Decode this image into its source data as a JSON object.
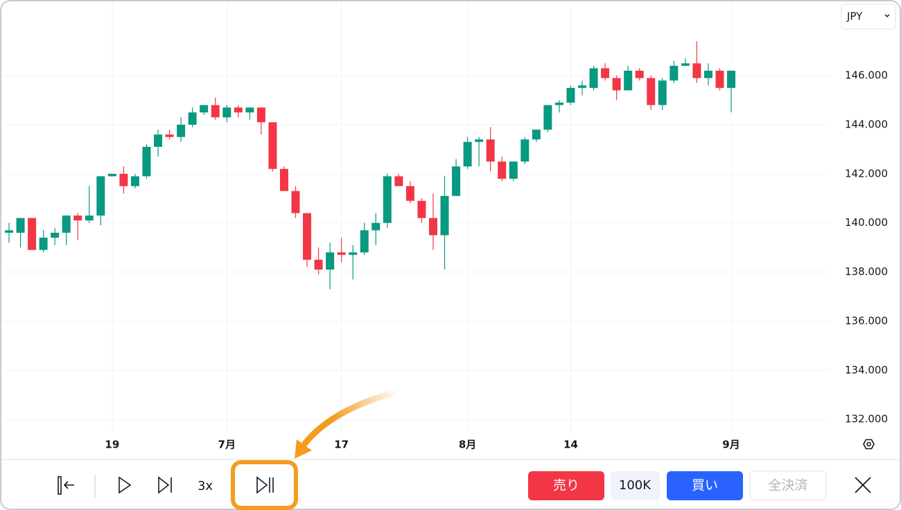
{
  "currency_select": "JPY",
  "toolbar": {
    "speed": "3x",
    "sell": "売り",
    "amount": "100K",
    "buy": "買い",
    "close_all": "全決済"
  },
  "chart_data": {
    "type": "candlestick",
    "up_color": "#089981",
    "down_color": "#f23645",
    "grid": true,
    "ylim": [
      131.44,
      149.08
    ],
    "yticks": [
      {
        "value": 132,
        "label": "132.000"
      },
      {
        "value": 134,
        "label": "134.000"
      },
      {
        "value": 136,
        "label": "136.000"
      },
      {
        "value": 138,
        "label": "138.000"
      },
      {
        "value": 140,
        "label": "140.000"
      },
      {
        "value": 142,
        "label": "142.000"
      },
      {
        "value": 144,
        "label": "144.000"
      },
      {
        "value": 146,
        "label": "146.000"
      }
    ],
    "categories": [
      null,
      null,
      null,
      null,
      null,
      null,
      null,
      null,
      null,
      "19",
      null,
      null,
      null,
      null,
      null,
      null,
      null,
      null,
      null,
      "7月",
      null,
      null,
      null,
      null,
      null,
      null,
      null,
      null,
      null,
      "17",
      null,
      null,
      null,
      null,
      null,
      null,
      null,
      null,
      null,
      null,
      "8月",
      null,
      null,
      null,
      null,
      null,
      null,
      null,
      null,
      "14",
      null,
      null,
      null,
      null,
      null,
      null,
      null,
      null,
      null,
      null,
      null,
      null,
      null,
      "9月"
    ],
    "open": [
      139.6,
      139.6,
      140.2,
      138.9,
      139.4,
      139.6,
      140.3,
      140.1,
      140.3,
      141.9,
      142.0,
      141.5,
      141.9,
      143.1,
      143.6,
      143.5,
      144.0,
      144.5,
      144.8,
      144.3,
      144.7,
      144.5,
      144.7,
      144.1,
      142.2,
      141.3,
      140.4,
      138.5,
      138.1,
      138.8,
      138.7,
      138.8,
      139.7,
      140.0,
      141.9,
      141.5,
      140.9,
      140.2,
      139.5,
      141.1,
      142.3,
      143.3,
      143.4,
      142.5,
      141.8,
      142.5,
      143.4,
      143.8,
      144.8,
      144.9,
      145.5,
      145.5,
      146.3,
      145.9,
      145.4,
      146.2,
      145.9,
      144.8,
      145.8,
      146.4,
      146.5,
      145.9,
      146.2,
      145.5
    ],
    "high": [
      140.0,
      140.2,
      140.2,
      139.7,
      139.8,
      140.3,
      140.4,
      141.5,
      141.9,
      142.0,
      142.3,
      142.0,
      143.2,
      143.8,
      143.8,
      144.3,
      144.7,
      144.8,
      145.1,
      144.8,
      144.8,
      144.7,
      144.7,
      144.1,
      142.3,
      141.5,
      140.4,
      139.0,
      139.2,
      139.4,
      139.1,
      140.0,
      140.4,
      142.0,
      142.0,
      141.7,
      141.0,
      141.2,
      141.9,
      142.6,
      143.5,
      143.5,
      143.9,
      142.7,
      142.5,
      143.5,
      143.8,
      144.8,
      145.0,
      145.6,
      145.8,
      146.4,
      146.5,
      146.0,
      146.4,
      146.3,
      146.0,
      145.9,
      146.6,
      146.7,
      147.4,
      146.5,
      146.3,
      146.2
    ],
    "low": [
      139.2,
      139.0,
      138.9,
      138.8,
      139.1,
      139.1,
      139.3,
      140.0,
      139.9,
      141.9,
      141.2,
      141.4,
      141.8,
      142.7,
      143.4,
      143.3,
      143.9,
      144.4,
      144.2,
      144.1,
      144.3,
      144.2,
      143.6,
      142.1,
      141.3,
      140.2,
      138.2,
      137.9,
      137.3,
      138.4,
      137.7,
      138.7,
      139.1,
      139.8,
      141.5,
      140.8,
      140.0,
      138.9,
      138.1,
      141.1,
      142.2,
      142.3,
      142.1,
      141.7,
      141.7,
      142.4,
      143.3,
      143.7,
      144.5,
      144.8,
      145.2,
      145.4,
      145.8,
      145.0,
      145.4,
      145.8,
      144.6,
      144.6,
      145.7,
      146.4,
      145.7,
      145.6,
      145.4,
      144.5
    ],
    "close": [
      139.7,
      140.2,
      138.9,
      139.4,
      139.6,
      140.3,
      140.1,
      140.3,
      141.9,
      142.0,
      141.5,
      141.9,
      143.1,
      143.6,
      143.5,
      144.0,
      144.5,
      144.8,
      144.3,
      144.7,
      144.5,
      144.7,
      144.1,
      142.2,
      141.3,
      140.4,
      138.5,
      138.1,
      138.8,
      138.7,
      138.8,
      139.7,
      140.0,
      141.9,
      141.5,
      140.9,
      140.2,
      139.5,
      141.1,
      142.3,
      143.3,
      143.4,
      142.5,
      141.8,
      142.5,
      143.4,
      143.8,
      144.8,
      144.9,
      145.5,
      145.6,
      146.3,
      145.9,
      145.4,
      146.2,
      145.9,
      144.8,
      145.8,
      146.4,
      146.5,
      145.9,
      146.2,
      145.5,
      146.2
    ]
  }
}
